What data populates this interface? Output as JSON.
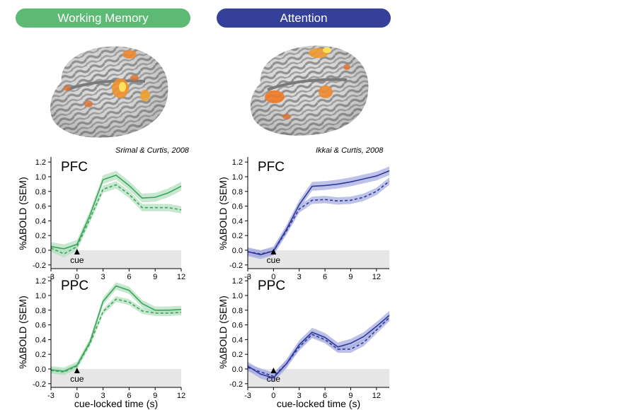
{
  "headers": {
    "working_memory": "Working Memory",
    "attention": "Attention"
  },
  "citations": {
    "working_memory": "Srimal & Curtis, 2008",
    "attention": "Ikkai & Curtis, 2008"
  },
  "colors": {
    "working_memory": "#3aa65a",
    "working_memory_band": "#b5dfc0",
    "attention": "#2e3a9a",
    "attention_band": "#a8aee0",
    "baseline_shade": "#e6e6e6"
  },
  "chart_data": [
    {
      "type": "line",
      "panel": "Working Memory PFC",
      "title": "PFC",
      "ylabel": "%ΔBOLD (SEM)",
      "xlabel": "",
      "xlim": [
        -3,
        12
      ],
      "ylim": [
        -0.25,
        1.25
      ],
      "xticks": [
        -3,
        0,
        3,
        6,
        9,
        12
      ],
      "yticks": [
        -0.2,
        0.0,
        0.2,
        0.4,
        0.6,
        0.8,
        1.0,
        1.2
      ],
      "x": [
        -3,
        -1.5,
        0,
        1.5,
        3,
        4.5,
        6,
        7.5,
        9,
        10.5,
        12
      ],
      "annotation": "cue",
      "grid": false,
      "series": [
        {
          "style": "solid",
          "values": [
            0.05,
            0.02,
            0.08,
            0.48,
            0.96,
            1.02,
            0.88,
            0.71,
            0.72,
            0.78,
            0.87
          ],
          "sem": 0.06
        },
        {
          "style": "dashed",
          "values": [
            0.03,
            -0.05,
            0.05,
            0.43,
            0.83,
            0.89,
            0.76,
            0.58,
            0.58,
            0.58,
            0.55
          ],
          "sem": 0.05
        }
      ]
    },
    {
      "type": "line",
      "panel": "Attention PFC",
      "title": "PFC",
      "ylabel": "%ΔBOLD (SEM)",
      "xlabel": "",
      "xlim": [
        -3,
        13.5
      ],
      "ylim": [
        -0.25,
        1.25
      ],
      "xticks": [
        -3,
        0,
        3,
        6,
        9,
        12
      ],
      "yticks": [
        -0.2,
        0.0,
        0.2,
        0.4,
        0.6,
        0.8,
        1.0,
        1.2
      ],
      "x": [
        -3,
        -1.5,
        0,
        1.5,
        3,
        4.5,
        6,
        7.5,
        9,
        10.5,
        12,
        13.5
      ],
      "annotation": "cue",
      "grid": false,
      "series": [
        {
          "style": "solid",
          "values": [
            -0.02,
            -0.06,
            -0.01,
            0.28,
            0.62,
            0.87,
            0.88,
            0.9,
            0.93,
            0.97,
            1.01,
            1.08
          ],
          "sem": 0.06
        },
        {
          "style": "dashed",
          "values": [
            -0.02,
            -0.05,
            -0.01,
            0.26,
            0.56,
            0.68,
            0.69,
            0.67,
            0.68,
            0.72,
            0.8,
            0.94
          ],
          "sem": 0.05
        }
      ]
    },
    {
      "type": "line",
      "panel": "Working Memory PPC",
      "title": "PPC",
      "ylabel": "%ΔBOLD (SEM)",
      "xlabel": "cue-locked time (s)",
      "xlim": [
        -3,
        12
      ],
      "ylim": [
        -0.25,
        1.25
      ],
      "xticks": [
        -3,
        0,
        3,
        6,
        9,
        12
      ],
      "yticks": [
        -0.2,
        0.0,
        0.2,
        0.4,
        0.6,
        0.8,
        1.0,
        1.2
      ],
      "x": [
        -3,
        -1.5,
        0,
        1.5,
        3,
        4.5,
        6,
        7.5,
        9,
        10.5,
        12
      ],
      "annotation": "cue",
      "grid": false,
      "series": [
        {
          "style": "solid",
          "values": [
            -0.01,
            -0.03,
            0.05,
            0.37,
            0.92,
            1.13,
            1.07,
            0.89,
            0.8,
            0.8,
            0.81
          ],
          "sem": 0.05
        },
        {
          "style": "dashed",
          "values": [
            -0.02,
            -0.04,
            0.04,
            0.35,
            0.78,
            0.95,
            0.91,
            0.79,
            0.76,
            0.76,
            0.77
          ],
          "sem": 0.04
        }
      ]
    },
    {
      "type": "line",
      "panel": "Attention PPC",
      "title": "PPC",
      "ylabel": "%ΔBOLD (SEM)",
      "xlabel": "cue-locked time (s)",
      "xlim": [
        -3,
        13.5
      ],
      "ylim": [
        -0.25,
        1.25
      ],
      "xticks": [
        -3,
        0,
        3,
        6,
        9,
        12
      ],
      "yticks": [
        -0.2,
        0.0,
        0.2,
        0.4,
        0.6,
        0.8,
        1.0,
        1.2
      ],
      "x": [
        -3,
        -1.5,
        0,
        1.5,
        3,
        4.5,
        6,
        7.5,
        9,
        10.5,
        12,
        13.5
      ],
      "annotation": "cue",
      "grid": false,
      "series": [
        {
          "style": "solid",
          "values": [
            0.04,
            -0.07,
            -0.12,
            0.07,
            0.33,
            0.5,
            0.43,
            0.3,
            0.35,
            0.44,
            0.58,
            0.73
          ],
          "sem": 0.06
        },
        {
          "style": "dashed",
          "values": [
            0.02,
            -0.04,
            -0.1,
            0.07,
            0.3,
            0.47,
            0.4,
            0.27,
            0.27,
            0.36,
            0.53,
            0.7
          ],
          "sem": 0.05
        }
      ]
    }
  ]
}
